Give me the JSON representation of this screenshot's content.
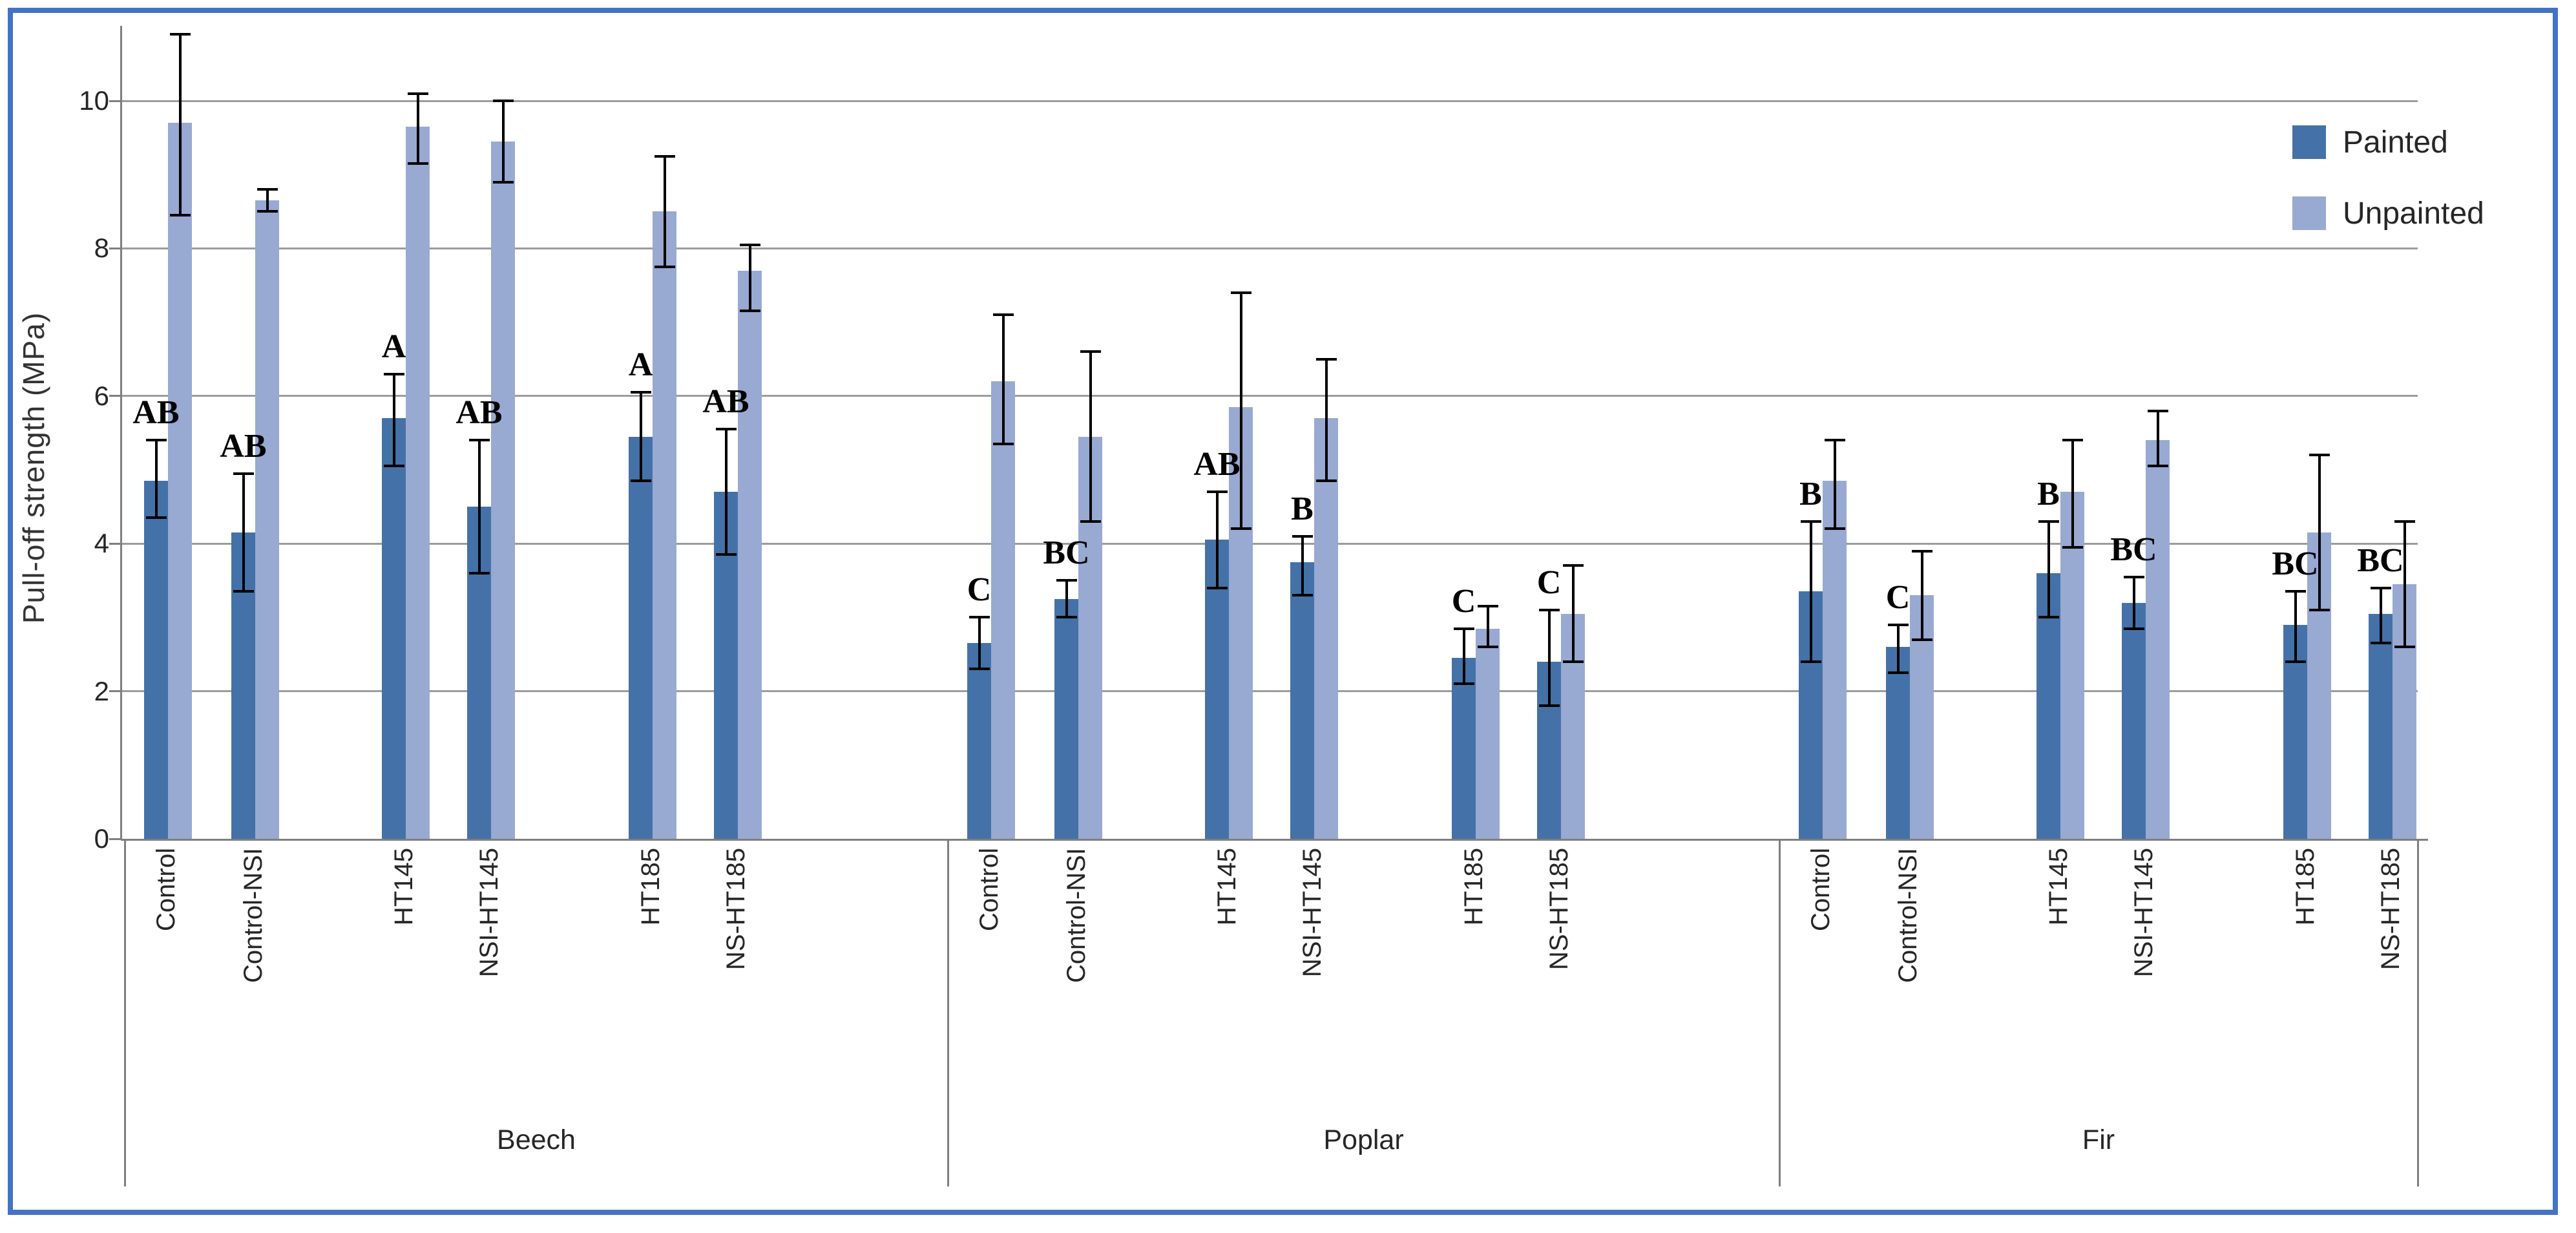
{
  "figure": {
    "border_color": "#4472c4",
    "background": "#ffffff"
  },
  "y_axis": {
    "title": "Pull-off strength  (MPa)",
    "tick_labels": [
      "0",
      "2",
      "4",
      "6",
      "8",
      "10"
    ]
  },
  "legend": {
    "items": [
      {
        "label": "Painted",
        "color": "#4472a8"
      },
      {
        "label": "Unpainted",
        "color": "#98a9d2"
      }
    ]
  },
  "chart_data": {
    "type": "bar",
    "title": "",
    "xlabel": "",
    "ylabel": "Pull-off strength (MPa)",
    "ylim": [
      0,
      11.2
    ],
    "yticks": [
      0,
      2,
      4,
      6,
      8,
      10
    ],
    "grid": "horizontal",
    "legend_position": "top-right",
    "series_names": [
      "Painted",
      "Unpainted"
    ],
    "group_names": [
      "Beech",
      "Poplar",
      "Fir"
    ],
    "categories": [
      "Control",
      "Control-NSI",
      "HT145",
      "NSI-HT145",
      "HT185",
      "NS-HT185"
    ],
    "error_bars": true,
    "colors": {
      "painted": "#4472a8",
      "unpainted": "#98a9d2",
      "gridline": "#9c9c9c",
      "axis": "#7f7f7f",
      "error_bar": "#000000",
      "letter": "#000000"
    },
    "groups": [
      {
        "name": "Beech",
        "bars": [
          {
            "category": "Control",
            "letter": "AB",
            "painted": {
              "value": 4.85,
              "err_lo": 4.35,
              "err_hi": 5.4
            },
            "unpainted": {
              "value": 9.7,
              "err_lo": 8.45,
              "err_hi": 10.9
            }
          },
          {
            "category": "Control-NSI",
            "letter": "AB",
            "painted": {
              "value": 4.15,
              "err_lo": 3.35,
              "err_hi": 4.95
            },
            "unpainted": {
              "value": 8.65,
              "err_lo": 8.5,
              "err_hi": 8.8
            }
          },
          {
            "category": "HT145",
            "letter": "A",
            "painted": {
              "value": 5.7,
              "err_lo": 5.05,
              "err_hi": 6.3
            },
            "unpainted": {
              "value": 9.65,
              "err_lo": 9.15,
              "err_hi": 10.1
            }
          },
          {
            "category": "NSI-HT145",
            "letter": "AB",
            "painted": {
              "value": 4.5,
              "err_lo": 3.6,
              "err_hi": 5.4
            },
            "unpainted": {
              "value": 9.45,
              "err_lo": 8.9,
              "err_hi": 10.0
            }
          },
          {
            "category": "HT185",
            "letter": "A",
            "painted": {
              "value": 5.45,
              "err_lo": 4.85,
              "err_hi": 6.05
            },
            "unpainted": {
              "value": 8.5,
              "err_lo": 7.75,
              "err_hi": 9.25
            }
          },
          {
            "category": "NS-HT185",
            "letter": "AB",
            "painted": {
              "value": 4.7,
              "err_lo": 3.85,
              "err_hi": 5.55
            },
            "unpainted": {
              "value": 7.7,
              "err_lo": 7.15,
              "err_hi": 8.05
            }
          }
        ]
      },
      {
        "name": "Poplar",
        "bars": [
          {
            "category": "Control",
            "letter": "C",
            "painted": {
              "value": 2.65,
              "err_lo": 2.3,
              "err_hi": 3.0
            },
            "unpainted": {
              "value": 6.2,
              "err_lo": 5.35,
              "err_hi": 7.1
            }
          },
          {
            "category": "Control-NSI",
            "letter": "BC",
            "painted": {
              "value": 3.25,
              "err_lo": 3.0,
              "err_hi": 3.5
            },
            "unpainted": {
              "value": 5.45,
              "err_lo": 4.3,
              "err_hi": 6.6
            }
          },
          {
            "category": "HT145",
            "letter": "AB",
            "painted": {
              "value": 4.05,
              "err_lo": 3.4,
              "err_hi": 4.7
            },
            "unpainted": {
              "value": 5.85,
              "err_lo": 4.2,
              "err_hi": 7.4
            }
          },
          {
            "category": "NSI-HT145",
            "letter": "B",
            "painted": {
              "value": 3.75,
              "err_lo": 3.3,
              "err_hi": 4.1
            },
            "unpainted": {
              "value": 5.7,
              "err_lo": 4.85,
              "err_hi": 6.5
            }
          },
          {
            "category": "HT185",
            "letter": "C",
            "painted": {
              "value": 2.45,
              "err_lo": 2.1,
              "err_hi": 2.85
            },
            "unpainted": {
              "value": 2.85,
              "err_lo": 2.6,
              "err_hi": 3.15
            }
          },
          {
            "category": "NS-HT185",
            "letter": "C",
            "painted": {
              "value": 2.4,
              "err_lo": 1.8,
              "err_hi": 3.1
            },
            "unpainted": {
              "value": 3.05,
              "err_lo": 2.4,
              "err_hi": 3.7
            }
          }
        ]
      },
      {
        "name": "Fir",
        "bars": [
          {
            "category": "Control",
            "letter": "B",
            "painted": {
              "value": 3.35,
              "err_lo": 2.4,
              "err_hi": 4.3
            },
            "unpainted": {
              "value": 4.85,
              "err_lo": 4.2,
              "err_hi": 5.4
            }
          },
          {
            "category": "Control-NSI",
            "letter": "C",
            "painted": {
              "value": 2.6,
              "err_lo": 2.25,
              "err_hi": 2.9
            },
            "unpainted": {
              "value": 3.3,
              "err_lo": 2.7,
              "err_hi": 3.9
            }
          },
          {
            "category": "HT145",
            "letter": "B",
            "painted": {
              "value": 3.6,
              "err_lo": 3.0,
              "err_hi": 4.3
            },
            "unpainted": {
              "value": 4.7,
              "err_lo": 3.95,
              "err_hi": 5.4
            }
          },
          {
            "category": "NSI-HT145",
            "letter": "BC",
            "painted": {
              "value": 3.2,
              "err_lo": 2.85,
              "err_hi": 3.55
            },
            "unpainted": {
              "value": 5.4,
              "err_lo": 5.05,
              "err_hi": 5.8
            }
          },
          {
            "category": "HT185",
            "letter": "BC",
            "painted": {
              "value": 2.9,
              "err_lo": 2.4,
              "err_hi": 3.35
            },
            "unpainted": {
              "value": 4.15,
              "err_lo": 3.1,
              "err_hi": 5.2
            }
          },
          {
            "category": "NS-HT185",
            "letter": "BC",
            "painted": {
              "value": 3.05,
              "err_lo": 2.65,
              "err_hi": 3.4
            },
            "unpainted": {
              "value": 3.45,
              "err_lo": 2.6,
              "err_hi": 4.3
            }
          }
        ]
      }
    ]
  }
}
